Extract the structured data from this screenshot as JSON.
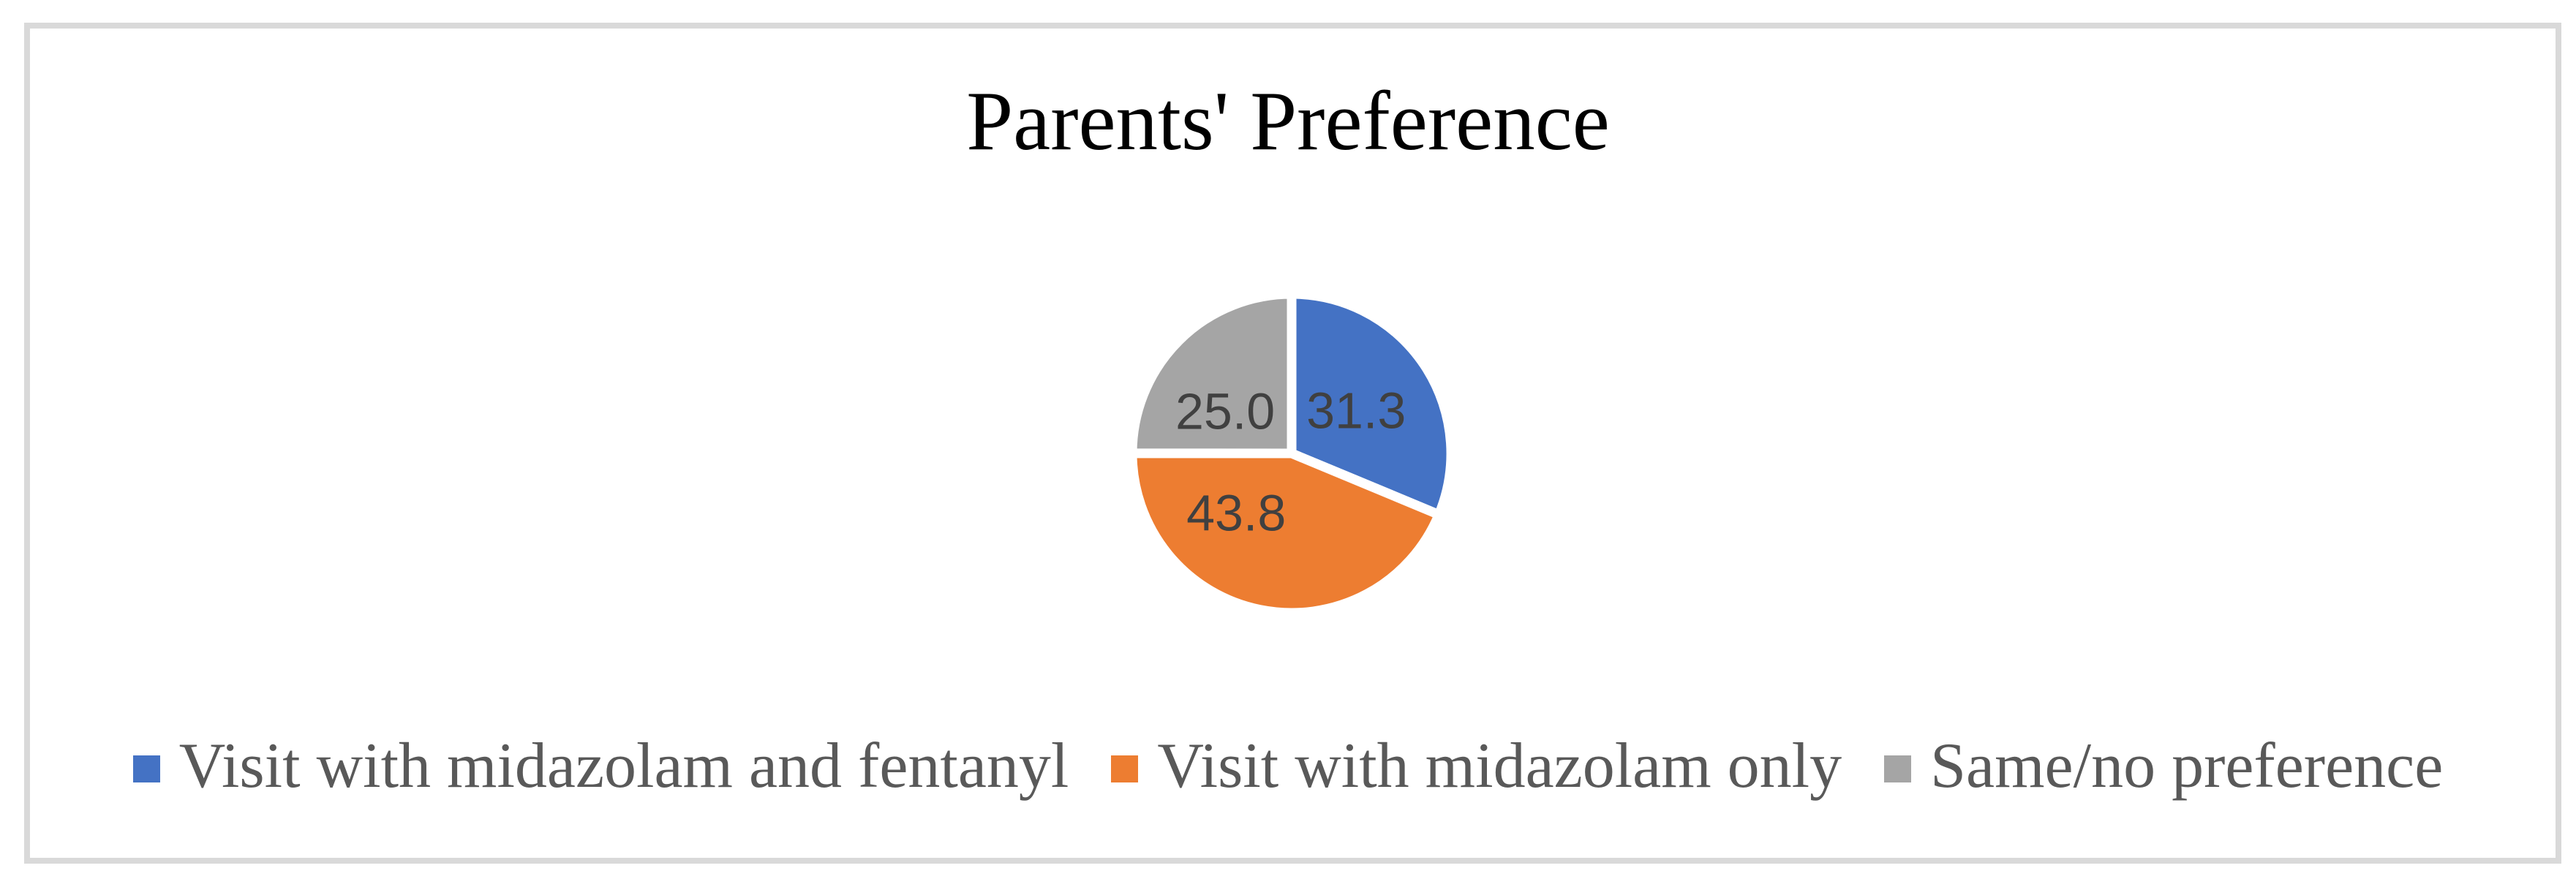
{
  "frame": {
    "border_color": "#d9d9d9",
    "background_color": "#ffffff"
  },
  "chart_data": {
    "type": "pie",
    "title": "Parents' Preference",
    "legend_position": "bottom",
    "start_angle_deg": 0,
    "direction": "clockwise",
    "data_label_color": "#404040",
    "legend_text_color": "#595959",
    "slice_separator_color": "#ffffff",
    "slices": [
      {
        "label": "Visit with midazolam and fentanyl",
        "value": 31.3,
        "label_text": "31.3",
        "color": "#4472C4"
      },
      {
        "label": "Visit with midazolam only",
        "value": 43.8,
        "label_text": "43.8",
        "color": "#ED7D31"
      },
      {
        "label": "Same/no preference",
        "value": 25.0,
        "label_text": "25.0",
        "color": "#A5A5A5"
      }
    ]
  }
}
